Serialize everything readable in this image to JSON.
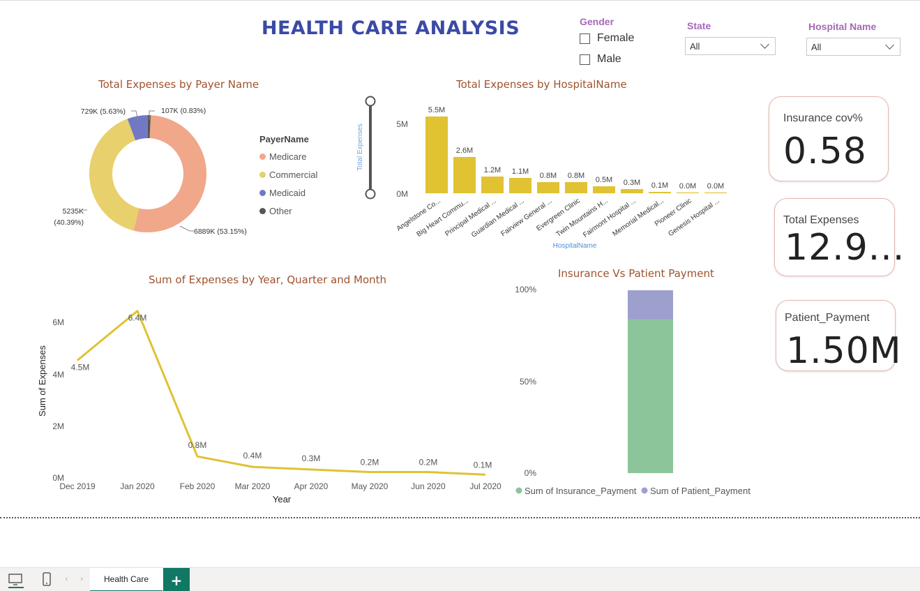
{
  "page_title": "HEALTH CARE ANALYSIS",
  "slicers": {
    "gender": {
      "title": "Gender",
      "options": [
        "Female",
        "Male"
      ]
    },
    "state": {
      "title": "State",
      "value": "All"
    },
    "hospital": {
      "title": "Hospital Name",
      "value": "All"
    }
  },
  "donut": {
    "title": "Total Expenses by Payer Name",
    "legend_title": "PayerName",
    "labels": [
      "729K (5.63%)",
      "107K (0.83%)",
      "5235K",
      "(40.39%)",
      "6889K (53.15%)"
    ]
  },
  "hospital_bar": {
    "title": "Total Expenses by HospitalName",
    "ylabel": "Total Expenses",
    "xlabel": "HospitalName",
    "yticks": [
      "5M",
      "0M"
    ],
    "tick_labels": [
      "Angelstone Co...",
      "Big Heart Commu...",
      "Principal Medical ...",
      "Guardian Medical ...",
      "Fairview General ...",
      "Evergreen Clinic",
      "Twin Mountains H...",
      "Fairmont Hospital ...",
      "Memorial Medical...",
      "Pioneer Clinic",
      "Genesis Hospital ..."
    ],
    "data_labels": [
      "5.5M",
      "2.6M",
      "1.2M",
      "1.1M",
      "0.8M",
      "0.8M",
      "0.5M",
      "0.3M",
      "0.1M",
      "0.0M",
      "0.0M"
    ]
  },
  "line": {
    "title": "Sum of Expenses by Year, Quarter and Month",
    "ylabel": "Sum of Expenses",
    "xlabel": "Year",
    "yticks": [
      "6M",
      "4M",
      "2M",
      "0M"
    ],
    "data_labels": [
      "4.5M",
      "6.4M",
      "0.8M",
      "0.4M",
      "0.3M",
      "0.2M",
      "0.2M",
      "0.1M"
    ]
  },
  "stacked": {
    "title": "Insurance Vs Patient Payment",
    "yticks": [
      "100%",
      "50%",
      "0%"
    ],
    "legend": [
      "Sum of Insurance_Payment",
      "Sum of Patient_Payment"
    ]
  },
  "cards": [
    {
      "label": "Insurance cov%",
      "value": "0.58"
    },
    {
      "label": "Total Expenses",
      "value": "12.9..."
    },
    {
      "label": "Patient_Payment",
      "value": "1.50M"
    }
  ],
  "tabs": {
    "active": "Health Care"
  },
  "chart_data": [
    {
      "type": "pie",
      "title": "Total Expenses by Payer Name",
      "categories": [
        "Medicare",
        "Commercial",
        "Medicaid",
        "Other"
      ],
      "values": [
        6889,
        5235,
        729,
        107
      ],
      "unit": "K",
      "colors": [
        "#f0a78a",
        "#e8d06c",
        "#7179c4",
        "#555555"
      ]
    },
    {
      "type": "bar",
      "title": "Total Expenses by HospitalName",
      "categories": [
        "Angelstone Co...",
        "Big Heart Commu...",
        "Principal Medical ...",
        "Guardian Medical ...",
        "Fairview General ...",
        "Evergreen Clinic",
        "Twin Mountains H...",
        "Fairmont Hospital ...",
        "Memorial Medical...",
        "Pioneer Clinic",
        "Genesis Hospital ..."
      ],
      "values": [
        5.5,
        2.6,
        1.2,
        1.1,
        0.8,
        0.8,
        0.5,
        0.3,
        0.1,
        0.02,
        0.01
      ],
      "xlabel": "HospitalName",
      "ylabel": "Total Expenses",
      "ylim": [
        0,
        5.6
      ],
      "color": "#e0c233"
    },
    {
      "type": "line",
      "title": "Sum of Expenses by Year, Quarter and Month",
      "x": [
        "Dec 2019",
        "Jan 2020",
        "Feb 2020",
        "Mar 2020",
        "Apr 2020",
        "May 2020",
        "Jun 2020",
        "Jul 2020"
      ],
      "values": [
        4.5,
        6.4,
        0.8,
        0.4,
        0.3,
        0.2,
        0.2,
        0.1
      ],
      "xlabel": "Year",
      "ylabel": "Sum of Expenses",
      "ylim": [
        0,
        6.7
      ],
      "color": "#e0c233"
    },
    {
      "type": "bar",
      "stacked": true,
      "title": "Insurance Vs Patient Payment",
      "series": [
        {
          "name": "Sum of Insurance_Payment",
          "values": [
            0.84
          ],
          "color": "#8dc59a"
        },
        {
          "name": "Sum of Patient_Payment",
          "values": [
            0.16
          ],
          "color": "#9d9fcd"
        }
      ],
      "ylim": [
        0,
        1
      ]
    }
  ]
}
